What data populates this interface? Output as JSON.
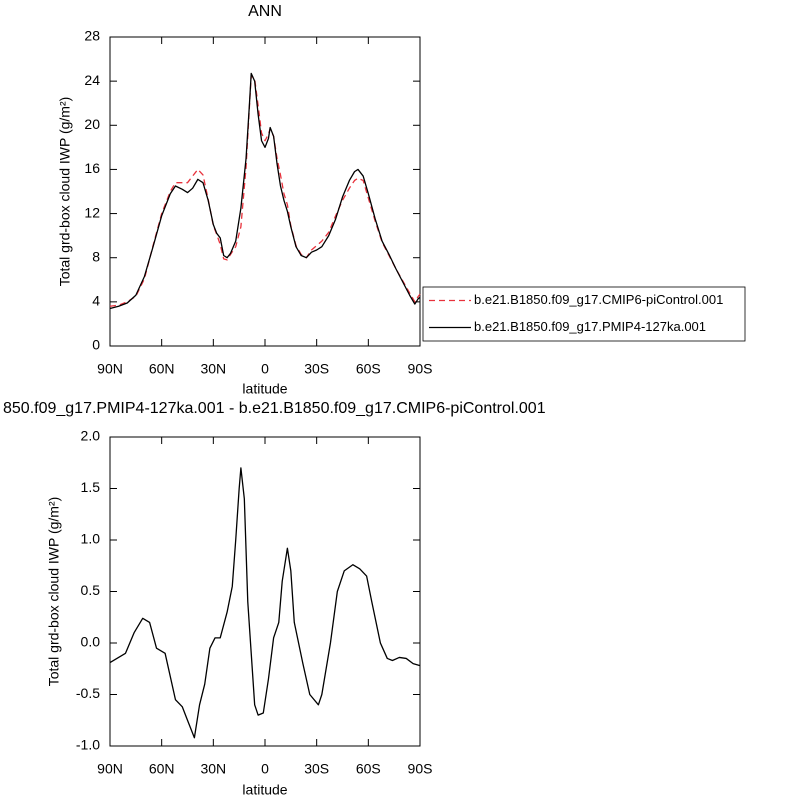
{
  "chart_data": [
    {
      "type": "line",
      "title": "ANN",
      "x_label": "latitude",
      "y_label": "Total grd-box cloud IWP (g/m²)",
      "x": [
        90,
        85,
        80,
        75,
        70,
        65,
        60,
        55,
        52,
        48,
        45,
        42,
        39,
        36,
        33,
        30,
        28,
        26,
        24,
        22,
        20,
        17,
        14,
        11,
        9,
        8,
        6,
        4,
        2,
        0,
        -2,
        -3,
        -5,
        -7,
        -9,
        -11,
        -13,
        -15,
        -18,
        -21,
        -24,
        -27,
        -30,
        -33,
        -37,
        -41,
        -45,
        -49,
        -52,
        -54,
        -57,
        -60,
        -64,
        -68,
        -72,
        -76,
        -80,
        -84,
        -87,
        -89,
        -90
      ],
      "series": [
        {
          "name": "b.e21.B1850.f09_g17.CMIP6-piControl.001",
          "color": "#e8323c",
          "line_style": "dashed",
          "values": [
            3.6,
            3.7,
            4.0,
            4.5,
            6.1,
            9.1,
            12.0,
            14.0,
            14.8,
            14.8,
            14.8,
            15.4,
            16.0,
            15.5,
            13.3,
            10.9,
            10.1,
            9.2,
            7.9,
            7.8,
            8.3,
            9.0,
            10.8,
            16.2,
            21.8,
            24.5,
            24.2,
            21.8,
            19.3,
            18.6,
            19.2,
            19.7,
            19.0,
            17.0,
            15.5,
            13.8,
            12.8,
            10.9,
            9.1,
            8.3,
            8.0,
            8.7,
            9.1,
            9.5,
            10.3,
            11.8,
            13.2,
            14.3,
            15.0,
            15.2,
            15.0,
            13.4,
            11.3,
            9.4,
            8.2,
            7.0,
            5.9,
            4.8,
            4.0,
            4.5,
            4.7
          ]
        },
        {
          "name": "b.e21.B1850.f09_g17.PMIP4-127ka.001",
          "color": "#000000",
          "line_style": "solid",
          "values": [
            3.4,
            3.6,
            3.9,
            4.6,
            6.3,
            9.0,
            11.8,
            13.8,
            14.5,
            14.2,
            13.9,
            14.3,
            15.1,
            14.8,
            13.2,
            11.0,
            10.2,
            9.8,
            8.2,
            8.0,
            8.4,
            9.5,
            12.5,
            17,
            22,
            24.7,
            24.0,
            21,
            18.6,
            18.0,
            18.8,
            19.8,
            19.0,
            16.5,
            14.5,
            13.2,
            12.2,
            10.8,
            9.0,
            8.2,
            8.0,
            8.5,
            8.7,
            9.0,
            10.0,
            11.5,
            13.5,
            15.0,
            15.8,
            16.0,
            15.4,
            13.8,
            11.5,
            9.5,
            8.3,
            7.0,
            5.8,
            4.6,
            3.8,
            4.3,
            4.4
          ]
        }
      ],
      "xlim": [
        90,
        -90
      ],
      "xticks": [
        {
          "value": 90,
          "label": "90N"
        },
        {
          "value": 60,
          "label": "60N"
        },
        {
          "value": 30,
          "label": "30N"
        },
        0,
        {
          "value": -30,
          "label": "30S"
        },
        {
          "value": -60,
          "label": "60S"
        },
        {
          "value": -90,
          "label": "90S"
        }
      ],
      "ylim": [
        0,
        28
      ],
      "yticks": [
        0,
        4,
        8,
        12,
        16,
        20,
        24,
        28
      ],
      "grid": false,
      "legend": "right"
    },
    {
      "type": "line",
      "title": "850.f09_g17.PMIP4-127ka.001 - b.e21.B1850.f09_g17.CMIP6-piControl.001",
      "x_label": "latitude",
      "y_label": "Total grd-box cloud IWP (g/m²)",
      "x": [
        90,
        81,
        76,
        71,
        67,
        63,
        58,
        52,
        48,
        45,
        41,
        38,
        35,
        32,
        29,
        26,
        22,
        19,
        17,
        15,
        14,
        12,
        10,
        8,
        6,
        4,
        1,
        -2,
        -5,
        -8,
        -10,
        -13,
        -15,
        -17,
        -22,
        -26,
        -31,
        -33,
        -38,
        -42,
        -46,
        -51,
        -55,
        -59,
        -62,
        -67,
        -71,
        -74,
        -78,
        -82,
        -86,
        -90
      ],
      "values": [
        -0.19,
        -0.1,
        0.1,
        0.24,
        0.2,
        -0.05,
        -0.1,
        -0.55,
        -0.62,
        -0.75,
        -0.92,
        -0.6,
        -0.4,
        -0.05,
        0.05,
        0.05,
        0.3,
        0.55,
        1.0,
        1.5,
        1.7,
        1.4,
        0.4,
        -0.1,
        -0.6,
        -0.7,
        -0.68,
        -0.35,
        0.05,
        0.2,
        0.6,
        0.92,
        0.7,
        0.2,
        -0.2,
        -0.5,
        -0.6,
        -0.5,
        0.0,
        0.5,
        0.7,
        0.76,
        0.72,
        0.65,
        0.4,
        0.0,
        -0.15,
        -0.17,
        -0.14,
        -0.15,
        -0.2,
        -0.22
      ],
      "color": "#000000",
      "xlim": [
        90,
        -90
      ],
      "xticks": [
        {
          "value": 90,
          "label": "90N"
        },
        {
          "value": 60,
          "label": "60N"
        },
        {
          "value": 30,
          "label": "30N"
        },
        0,
        {
          "value": -30,
          "label": "30S"
        },
        {
          "value": -60,
          "label": "60S"
        },
        {
          "value": -90,
          "label": "90S"
        }
      ],
      "ylim": [
        -1,
        2
      ],
      "yticks": [
        {
          "value": -1,
          "label": "-1.0"
        },
        -0.5,
        {
          "value": 0,
          "label": "0.0"
        },
        0.5,
        {
          "value": 1,
          "label": "1.0"
        },
        1.5,
        {
          "value": 2,
          "label": "2.0"
        }
      ],
      "grid": false
    }
  ]
}
